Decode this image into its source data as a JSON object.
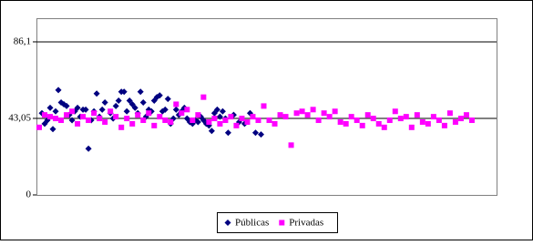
{
  "chart_data": {
    "type": "scatter",
    "xlim": [
      0,
      168
    ],
    "ylim": [
      0,
      99.4
    ],
    "yticks": [
      0,
      {
        "value": 43.05,
        "label": "43,05"
      },
      {
        "value": 86.1,
        "label": "86,1"
      }
    ],
    "grid": true,
    "legend": "bottom",
    "series": [
      {
        "name": "Públicas",
        "color": "#000080",
        "marker": "diamond",
        "x": [
          2,
          3,
          4,
          5,
          6,
          7,
          8,
          9,
          10,
          11,
          12,
          13,
          14,
          15,
          16,
          17,
          18,
          19,
          20,
          21,
          22,
          23,
          24,
          25,
          27,
          28,
          29,
          30,
          31,
          32,
          33,
          34,
          35,
          36,
          37,
          38,
          39,
          40,
          41,
          42,
          43,
          44,
          45,
          46,
          47,
          48,
          49,
          50,
          51,
          52,
          53,
          54,
          55,
          56,
          57,
          58,
          59,
          60,
          61,
          62,
          63,
          64,
          65,
          66,
          67,
          68,
          69,
          70,
          72,
          74,
          76,
          78,
          80,
          82
        ],
        "values": [
          46,
          40,
          42,
          49,
          37,
          47,
          59,
          52,
          51,
          50,
          45,
          42,
          47,
          49,
          44,
          48,
          48,
          26,
          42,
          47,
          57,
          44,
          48,
          52,
          46,
          43,
          50,
          53,
          58,
          58,
          47,
          53,
          51,
          49,
          46,
          58,
          52,
          44,
          48,
          47,
          53,
          55,
          56,
          47,
          48,
          54,
          40,
          43,
          48,
          45,
          47,
          49,
          43,
          41,
          40,
          42,
          41,
          44,
          42,
          40,
          39,
          36,
          46,
          48,
          44,
          47,
          43,
          35,
          45,
          41,
          40,
          46,
          35,
          34
        ]
      },
      {
        "name": "Privadas",
        "color": "#ff00ff",
        "marker": "square",
        "x": [
          1,
          3,
          5,
          7,
          9,
          11,
          13,
          15,
          17,
          19,
          21,
          23,
          25,
          27,
          29,
          31,
          33,
          35,
          37,
          39,
          41,
          43,
          45,
          47,
          49,
          51,
          53,
          55,
          57,
          59,
          61,
          63,
          65,
          67,
          69,
          71,
          73,
          75,
          77,
          79,
          81,
          83,
          85,
          87,
          89,
          91,
          93,
          95,
          97,
          99,
          101,
          103,
          105,
          107,
          109,
          111,
          113,
          115,
          117,
          119,
          121,
          123,
          125,
          127,
          129,
          131,
          133,
          135,
          137,
          139,
          141,
          143,
          145,
          147,
          149,
          151,
          153,
          155,
          157,
          159
        ],
        "values": [
          38,
          45,
          44,
          43,
          42,
          45,
          47,
          40,
          44,
          42,
          46,
          43,
          41,
          47,
          44,
          38,
          43,
          40,
          45,
          42,
          46,
          39,
          44,
          42,
          41,
          51,
          46,
          48,
          42,
          45,
          55,
          41,
          43,
          40,
          42,
          44,
          39,
          43,
          41,
          44,
          42,
          50,
          42,
          40,
          45,
          44,
          28,
          46,
          47,
          45,
          48,
          42,
          46,
          44,
          47,
          41,
          40,
          44,
          42,
          39,
          45,
          43,
          40,
          38,
          42,
          47,
          43,
          44,
          38,
          45,
          41,
          40,
          44,
          42,
          39,
          46,
          41,
          43,
          45,
          42
        ]
      }
    ]
  }
}
